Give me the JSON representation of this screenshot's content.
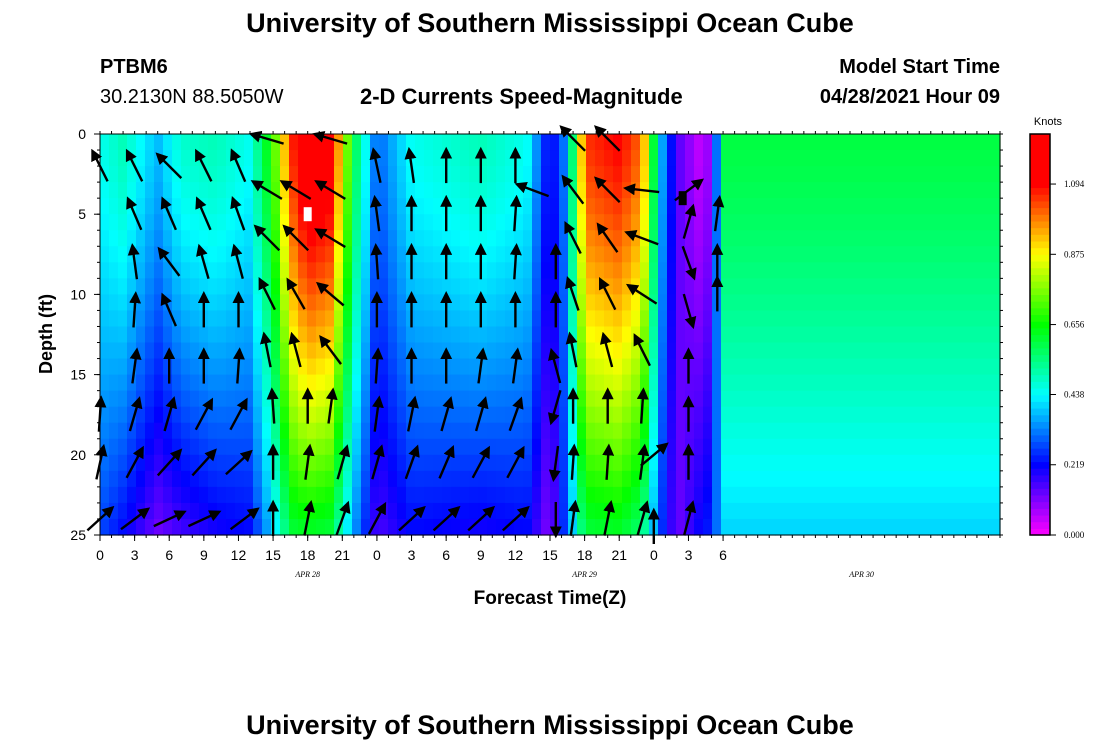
{
  "header": {
    "title": "University of Southern Mississippi Ocean Cube",
    "station": "PTBM6",
    "coords": "30.2130N  88.5050W",
    "subtitle": "2-D Currents Speed-Magnitude",
    "model_start_label": "Model Start Time",
    "model_start_value": "04/28/2021 Hour 09",
    "footer_title": "University of Southern Mississippi Ocean Cube"
  },
  "chart_data": {
    "type": "heatmap",
    "xlabel": "Forecast Time(Z)",
    "ylabel": "Depth (ft)",
    "x_tick_labels": [
      "0",
      "3",
      "6",
      "9",
      "12",
      "15",
      "18",
      "21",
      "0",
      "3",
      "6",
      "9",
      "12",
      "15",
      "18",
      "21",
      "0",
      "3",
      "6"
    ],
    "date_labels": [
      {
        "label": "APR  28",
        "hour": 18
      },
      {
        "label": "APR  29",
        "hour": 42
      },
      {
        "label": "APR  30",
        "hour": 66
      }
    ],
    "x_range_hours": [
      0,
      78
    ],
    "y_ticks": [
      0,
      5,
      10,
      15,
      20,
      25
    ],
    "ylim": [
      0,
      25
    ],
    "y_inverted": true,
    "colorbar": {
      "unit": "Knots",
      "ticks": [
        "0.000",
        "0.219",
        "0.438",
        "0.656",
        "0.875",
        "1.094"
      ],
      "tick_values": [
        0.0,
        0.219,
        0.438,
        0.656,
        0.875,
        1.094
      ],
      "max": 1.25,
      "colors": [
        "#ff00ff",
        "#0000ff",
        "#00ffff",
        "#00ff00",
        "#ffff00",
        "#ff0000"
      ]
    },
    "speed_profile": [
      {
        "hour": 0,
        "top": 0.45,
        "bottom": 0.28
      },
      {
        "hour": 2,
        "top": 0.5,
        "bottom": 0.22
      },
      {
        "hour": 5,
        "top": 0.38,
        "bottom": 0.12
      },
      {
        "hour": 7,
        "top": 0.48,
        "bottom": 0.16
      },
      {
        "hour": 10,
        "top": 0.5,
        "bottom": 0.2
      },
      {
        "hour": 13,
        "top": 0.45,
        "bottom": 0.22
      },
      {
        "hour": 15,
        "top": 0.7,
        "bottom": 0.4
      },
      {
        "hour": 16.5,
        "top": 1.05,
        "bottom": 0.6
      },
      {
        "hour": 18,
        "top": 1.2,
        "bottom": 0.62
      },
      {
        "hour": 20,
        "top": 1.15,
        "bottom": 0.6
      },
      {
        "hour": 22,
        "top": 0.6,
        "bottom": 0.35
      },
      {
        "hour": 24,
        "top": 0.3,
        "bottom": 0.15
      },
      {
        "hour": 27,
        "top": 0.45,
        "bottom": 0.22
      },
      {
        "hour": 33,
        "top": 0.5,
        "bottom": 0.2
      },
      {
        "hour": 37,
        "top": 0.45,
        "bottom": 0.22
      },
      {
        "hour": 39,
        "top": 0.2,
        "bottom": 0.1
      },
      {
        "hour": 40.5,
        "top": 0.35,
        "bottom": 0.3
      },
      {
        "hour": 42,
        "top": 1.05,
        "bottom": 0.6
      },
      {
        "hour": 45,
        "top": 1.1,
        "bottom": 0.62
      },
      {
        "hour": 47,
        "top": 1.0,
        "bottom": 0.55
      },
      {
        "hour": 48.5,
        "top": 0.4,
        "bottom": 0.28
      },
      {
        "hour": 50,
        "top": 0.15,
        "bottom": 0.12
      },
      {
        "hour": 52,
        "top": 0.05,
        "bottom": 0.22
      },
      {
        "hour": 53,
        "top": 0.1,
        "bottom": 0.25
      },
      {
        "hour": 54,
        "top": 0.6,
        "bottom": 0.4
      }
    ],
    "vectors": [
      {
        "hour": 0,
        "depth": 2,
        "u": -0.35,
        "v": 0.7
      },
      {
        "hour": 3,
        "depth": 2,
        "u": -0.35,
        "v": 0.7
      },
      {
        "hour": 6,
        "depth": 2,
        "u": -0.55,
        "v": 0.55
      },
      {
        "hour": 9,
        "depth": 2,
        "u": -0.35,
        "v": 0.7
      },
      {
        "hour": 12,
        "depth": 2,
        "u": -0.3,
        "v": 0.7
      },
      {
        "hour": 14.5,
        "depth": 0.3,
        "u": -0.85,
        "v": 0.25
      },
      {
        "hour": 20,
        "depth": 0.3,
        "u": -0.85,
        "v": 0.25
      },
      {
        "hour": 3,
        "depth": 5,
        "u": -0.3,
        "v": 0.7
      },
      {
        "hour": 6,
        "depth": 5,
        "u": -0.3,
        "v": 0.7
      },
      {
        "hour": 9,
        "depth": 5,
        "u": -0.3,
        "v": 0.7
      },
      {
        "hour": 12,
        "depth": 5,
        "u": -0.25,
        "v": 0.7
      },
      {
        "hour": 14.5,
        "depth": 3.5,
        "u": -0.75,
        "v": 0.45
      },
      {
        "hour": 17,
        "depth": 3.5,
        "u": -0.75,
        "v": 0.45
      },
      {
        "hour": 20,
        "depth": 3.5,
        "u": -0.75,
        "v": 0.45
      },
      {
        "hour": 3,
        "depth": 8,
        "u": -0.1,
        "v": 0.75
      },
      {
        "hour": 6,
        "depth": 8,
        "u": -0.45,
        "v": 0.6
      },
      {
        "hour": 9,
        "depth": 8,
        "u": -0.2,
        "v": 0.7
      },
      {
        "hour": 12,
        "depth": 8,
        "u": -0.2,
        "v": 0.75
      },
      {
        "hour": 14.5,
        "depth": 6.5,
        "u": -0.6,
        "v": 0.6
      },
      {
        "hour": 17,
        "depth": 6.5,
        "u": -0.6,
        "v": 0.6
      },
      {
        "hour": 20,
        "depth": 6.5,
        "u": -0.75,
        "v": 0.45
      },
      {
        "hour": 3,
        "depth": 11,
        "u": 0.05,
        "v": 0.75
      },
      {
        "hour": 6,
        "depth": 11,
        "u": -0.3,
        "v": 0.7
      },
      {
        "hour": 9,
        "depth": 11,
        "u": 0.0,
        "v": 0.75
      },
      {
        "hour": 12,
        "depth": 11,
        "u": 0.0,
        "v": 0.75
      },
      {
        "hour": 14.5,
        "depth": 10,
        "u": -0.35,
        "v": 0.7
      },
      {
        "hour": 17,
        "depth": 10,
        "u": -0.4,
        "v": 0.7
      },
      {
        "hour": 20,
        "depth": 10,
        "u": -0.65,
        "v": 0.55
      },
      {
        "hour": 3,
        "depth": 14.5,
        "u": 0.1,
        "v": 0.75
      },
      {
        "hour": 6,
        "depth": 14.5,
        "u": 0.0,
        "v": 0.75
      },
      {
        "hour": 9,
        "depth": 14.5,
        "u": 0.0,
        "v": 0.75
      },
      {
        "hour": 12,
        "depth": 14.5,
        "u": 0.05,
        "v": 0.75
      },
      {
        "hour": 14.5,
        "depth": 13.5,
        "u": -0.15,
        "v": 0.75
      },
      {
        "hour": 17,
        "depth": 13.5,
        "u": -0.2,
        "v": 0.75
      },
      {
        "hour": 20,
        "depth": 13.5,
        "u": -0.45,
        "v": 0.6
      },
      {
        "hour": 0,
        "depth": 17.5,
        "u": 0.05,
        "v": 0.75
      },
      {
        "hour": 3,
        "depth": 17.5,
        "u": 0.2,
        "v": 0.7
      },
      {
        "hour": 6,
        "depth": 17.5,
        "u": 0.2,
        "v": 0.7
      },
      {
        "hour": 9,
        "depth": 17.5,
        "u": 0.35,
        "v": 0.65
      },
      {
        "hour": 12,
        "depth": 17.5,
        "u": 0.35,
        "v": 0.65
      },
      {
        "hour": 15,
        "depth": 17,
        "u": -0.05,
        "v": 0.75
      },
      {
        "hour": 18,
        "depth": 17,
        "u": 0.0,
        "v": 0.75
      },
      {
        "hour": 20,
        "depth": 17,
        "u": 0.1,
        "v": 0.75
      },
      {
        "hour": 0,
        "depth": 20.5,
        "u": 0.15,
        "v": 0.7
      },
      {
        "hour": 3,
        "depth": 20.5,
        "u": 0.35,
        "v": 0.65
      },
      {
        "hour": 6,
        "depth": 20.5,
        "u": 0.5,
        "v": 0.55
      },
      {
        "hour": 9,
        "depth": 20.5,
        "u": 0.5,
        "v": 0.55
      },
      {
        "hour": 12,
        "depth": 20.5,
        "u": 0.55,
        "v": 0.5
      },
      {
        "hour": 15,
        "depth": 20.5,
        "u": 0.0,
        "v": 0.75
      },
      {
        "hour": 18,
        "depth": 20.5,
        "u": 0.1,
        "v": 0.75
      },
      {
        "hour": 21,
        "depth": 20.5,
        "u": 0.2,
        "v": 0.7
      },
      {
        "hour": 0,
        "depth": 24,
        "u": 0.55,
        "v": 0.5
      },
      {
        "hour": 3,
        "depth": 24,
        "u": 0.6,
        "v": 0.45
      },
      {
        "hour": 6,
        "depth": 24,
        "u": 0.75,
        "v": 0.35
      },
      {
        "hour": 9,
        "depth": 24,
        "u": 0.75,
        "v": 0.35
      },
      {
        "hour": 12.5,
        "depth": 24,
        "u": 0.6,
        "v": 0.45
      },
      {
        "hour": 15,
        "depth": 24,
        "u": 0.0,
        "v": 0.75
      },
      {
        "hour": 18,
        "depth": 24,
        "u": 0.15,
        "v": 0.75
      },
      {
        "hour": 21,
        "depth": 24,
        "u": 0.25,
        "v": 0.7
      },
      {
        "hour": 24,
        "depth": 2,
        "u": -0.15,
        "v": 0.7
      },
      {
        "hour": 27,
        "depth": 2,
        "u": -0.1,
        "v": 0.7
      },
      {
        "hour": 30,
        "depth": 2,
        "u": 0.0,
        "v": 0.75
      },
      {
        "hour": 33,
        "depth": 2,
        "u": 0.0,
        "v": 0.75
      },
      {
        "hour": 36,
        "depth": 2,
        "u": 0.0,
        "v": 0.75
      },
      {
        "hour": 37.5,
        "depth": 3.5,
        "u": -0.8,
        "v": 0.3
      },
      {
        "hour": 24,
        "depth": 5,
        "u": -0.1,
        "v": 0.75
      },
      {
        "hour": 27,
        "depth": 5,
        "u": 0.0,
        "v": 0.75
      },
      {
        "hour": 30,
        "depth": 5,
        "u": 0.0,
        "v": 0.75
      },
      {
        "hour": 33,
        "depth": 5,
        "u": 0.0,
        "v": 0.75
      },
      {
        "hour": 36,
        "depth": 5,
        "u": 0.05,
        "v": 0.75
      },
      {
        "hour": 24,
        "depth": 8,
        "u": -0.05,
        "v": 0.75
      },
      {
        "hour": 27,
        "depth": 8,
        "u": 0.0,
        "v": 0.75
      },
      {
        "hour": 30,
        "depth": 8,
        "u": 0.0,
        "v": 0.75
      },
      {
        "hour": 33,
        "depth": 8,
        "u": 0.0,
        "v": 0.75
      },
      {
        "hour": 36,
        "depth": 8,
        "u": 0.05,
        "v": 0.75
      },
      {
        "hour": 24,
        "depth": 11,
        "u": 0.0,
        "v": 0.75
      },
      {
        "hour": 27,
        "depth": 11,
        "u": 0.0,
        "v": 0.75
      },
      {
        "hour": 30,
        "depth": 11,
        "u": 0.0,
        "v": 0.75
      },
      {
        "hour": 33,
        "depth": 11,
        "u": 0.0,
        "v": 0.75
      },
      {
        "hour": 36,
        "depth": 11,
        "u": 0.0,
        "v": 0.75
      },
      {
        "hour": 24,
        "depth": 14.5,
        "u": 0.05,
        "v": 0.75
      },
      {
        "hour": 27,
        "depth": 14.5,
        "u": 0.0,
        "v": 0.75
      },
      {
        "hour": 30,
        "depth": 14.5,
        "u": 0.0,
        "v": 0.75
      },
      {
        "hour": 33,
        "depth": 14.5,
        "u": 0.1,
        "v": 0.75
      },
      {
        "hour": 36,
        "depth": 14.5,
        "u": 0.1,
        "v": 0.75
      },
      {
        "hour": 24,
        "depth": 17.5,
        "u": 0.1,
        "v": 0.75
      },
      {
        "hour": 27,
        "depth": 17.5,
        "u": 0.15,
        "v": 0.75
      },
      {
        "hour": 30,
        "depth": 17.5,
        "u": 0.2,
        "v": 0.7
      },
      {
        "hour": 33,
        "depth": 17.5,
        "u": 0.2,
        "v": 0.7
      },
      {
        "hour": 36,
        "depth": 17.5,
        "u": 0.25,
        "v": 0.7
      },
      {
        "hour": 24,
        "depth": 20.5,
        "u": 0.2,
        "v": 0.7
      },
      {
        "hour": 27,
        "depth": 20.5,
        "u": 0.25,
        "v": 0.7
      },
      {
        "hour": 30,
        "depth": 20.5,
        "u": 0.3,
        "v": 0.7
      },
      {
        "hour": 33,
        "depth": 20.5,
        "u": 0.35,
        "v": 0.65
      },
      {
        "hour": 36,
        "depth": 20.5,
        "u": 0.35,
        "v": 0.65
      },
      {
        "hour": 24,
        "depth": 24,
        "u": 0.35,
        "v": 0.65
      },
      {
        "hour": 27,
        "depth": 24,
        "u": 0.55,
        "v": 0.5
      },
      {
        "hour": 30,
        "depth": 24,
        "u": 0.55,
        "v": 0.5
      },
      {
        "hour": 33,
        "depth": 24,
        "u": 0.55,
        "v": 0.5
      },
      {
        "hour": 36,
        "depth": 24,
        "u": 0.55,
        "v": 0.5
      },
      {
        "hour": 39.5,
        "depth": 17,
        "u": -0.2,
        "v": -0.7
      },
      {
        "hour": 39.5,
        "depth": 20.5,
        "u": -0.1,
        "v": -0.75
      },
      {
        "hour": 39.5,
        "depth": 24,
        "u": 0.0,
        "v": -0.75
      },
      {
        "hour": 39.5,
        "depth": 14.5,
        "u": -0.2,
        "v": 0.75
      },
      {
        "hour": 39.5,
        "depth": 11,
        "u": 0.0,
        "v": 0.75
      },
      {
        "hour": 39.5,
        "depth": 8,
        "u": 0.0,
        "v": 0.75
      },
      {
        "hour": 41,
        "depth": 0.3,
        "u": -0.6,
        "v": 0.6
      },
      {
        "hour": 44,
        "depth": 0.3,
        "u": -0.6,
        "v": 0.6
      },
      {
        "hour": 41,
        "depth": 3.5,
        "u": -0.45,
        "v": 0.6
      },
      {
        "hour": 44,
        "depth": 3.5,
        "u": -0.6,
        "v": 0.6
      },
      {
        "hour": 47,
        "depth": 3.5,
        "u": -0.85,
        "v": 0.1
      },
      {
        "hour": 41,
        "depth": 6.5,
        "u": -0.35,
        "v": 0.7
      },
      {
        "hour": 44,
        "depth": 6.5,
        "u": -0.45,
        "v": 0.65
      },
      {
        "hour": 47,
        "depth": 6.5,
        "u": -0.8,
        "v": 0.3
      },
      {
        "hour": 41,
        "depth": 10,
        "u": -0.25,
        "v": 0.75
      },
      {
        "hour": 44,
        "depth": 10,
        "u": -0.35,
        "v": 0.7
      },
      {
        "hour": 47,
        "depth": 10,
        "u": -0.7,
        "v": 0.45
      },
      {
        "hour": 41,
        "depth": 13.5,
        "u": -0.15,
        "v": 0.75
      },
      {
        "hour": 44,
        "depth": 13.5,
        "u": -0.2,
        "v": 0.75
      },
      {
        "hour": 47,
        "depth": 13.5,
        "u": -0.35,
        "v": 0.7
      },
      {
        "hour": 41,
        "depth": 17,
        "u": 0.0,
        "v": 0.75
      },
      {
        "hour": 44,
        "depth": 17,
        "u": 0.0,
        "v": 0.75
      },
      {
        "hour": 47,
        "depth": 17,
        "u": 0.05,
        "v": 0.75
      },
      {
        "hour": 41,
        "depth": 20.5,
        "u": 0.05,
        "v": 0.75
      },
      {
        "hour": 44,
        "depth": 20.5,
        "u": 0.05,
        "v": 0.75
      },
      {
        "hour": 47,
        "depth": 20.5,
        "u": 0.1,
        "v": 0.75
      },
      {
        "hour": 41,
        "depth": 24,
        "u": 0.1,
        "v": 0.75
      },
      {
        "hour": 44,
        "depth": 24,
        "u": 0.15,
        "v": 0.75
      },
      {
        "hour": 47,
        "depth": 24,
        "u": 0.2,
        "v": 0.7
      },
      {
        "hour": 48,
        "depth": 20,
        "u": 0.6,
        "v": 0.5
      },
      {
        "hour": 51,
        "depth": 3.5,
        "u": 0.6,
        "v": 0.45
      },
      {
        "hour": 51,
        "depth": 5.5,
        "u": 0.2,
        "v": 0.7
      },
      {
        "hour": 51,
        "depth": 8,
        "u": 0.25,
        "v": -0.7
      },
      {
        "hour": 51,
        "depth": 11,
        "u": 0.2,
        "v": -0.7
      },
      {
        "hour": 51,
        "depth": 14.5,
        "u": 0.0,
        "v": 0.75
      },
      {
        "hour": 51,
        "depth": 17.5,
        "u": 0.0,
        "v": 0.75
      },
      {
        "hour": 51,
        "depth": 20.5,
        "u": 0.0,
        "v": 0.75
      },
      {
        "hour": 51,
        "depth": 24,
        "u": 0.2,
        "v": 0.75
      },
      {
        "hour": 48,
        "depth": 24.5,
        "u": 0.0,
        "v": 0.75
      },
      {
        "hour": 53.5,
        "depth": 5,
        "u": 0.1,
        "v": 0.75
      },
      {
        "hour": 53.5,
        "depth": 8,
        "u": 0.0,
        "v": 0.75
      },
      {
        "hour": 53.5,
        "depth": 10,
        "u": 0.0,
        "v": 0.75
      }
    ],
    "marker_points": [
      {
        "hour": 18,
        "depth": 5,
        "color": "#ffffff"
      },
      {
        "hour": 50.5,
        "depth": 4,
        "color": "#000000"
      }
    ]
  }
}
